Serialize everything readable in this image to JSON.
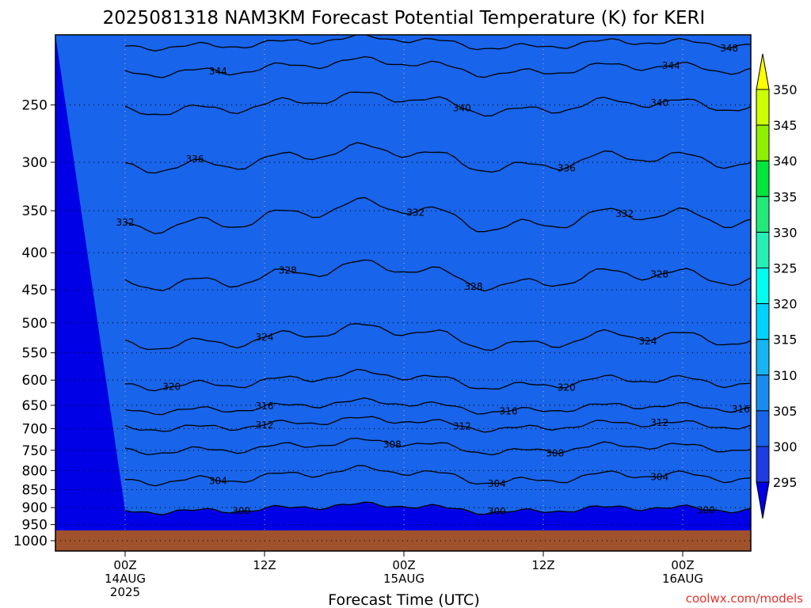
{
  "chart_data": {
    "type": "heatmap",
    "title": "2025081318 NAM3KM Forecast Potential Temperature (K) for KERI",
    "xlabel": "Forecast Time (UTC)",
    "ylabel": "",
    "credit": "coolwx.com/models",
    "y_scale": "log-pressure",
    "y_range_hpa": [
      1000,
      200
    ],
    "y_ticks": [
      "250",
      "300",
      "350",
      "400",
      "450",
      "500",
      "550",
      "600",
      "650",
      "700",
      "750",
      "800",
      "850",
      "900",
      "950",
      "1000"
    ],
    "x_ticks": [
      {
        "time": "00Z",
        "date": "14AUG",
        "year": "2025"
      },
      {
        "time": "12Z",
        "date": "",
        "year": ""
      },
      {
        "time": "00Z",
        "date": "15AUG",
        "year": ""
      },
      {
        "time": "12Z",
        "date": "",
        "year": ""
      },
      {
        "time": "00Z",
        "date": "16AUG",
        "year": ""
      }
    ],
    "colorbar": {
      "unit": "K",
      "labels": [
        "350",
        "345",
        "340",
        "335",
        "330",
        "325",
        "320",
        "315",
        "310",
        "305",
        "300",
        "295"
      ],
      "colors": [
        "#ffff00",
        "#ccff00",
        "#8cf000",
        "#00e63c",
        "#22ea7a",
        "#26efb4",
        "#00ffee",
        "#00d2ff",
        "#16b4f2",
        "#198cf0",
        "#1864ea",
        "#1e3ce2",
        "#0000e6"
      ]
    },
    "contour_interval_K": 4,
    "contour_labels": [
      "348",
      "344",
      "344",
      "340",
      "340",
      "336",
      "336",
      "332",
      "332",
      "332",
      "328",
      "328",
      "328",
      "324",
      "324",
      "320",
      "320",
      "320",
      "316",
      "316",
      "316",
      "312",
      "312",
      "312",
      "308",
      "308",
      "304",
      "304",
      "304",
      "300",
      "300",
      "300"
    ]
  }
}
